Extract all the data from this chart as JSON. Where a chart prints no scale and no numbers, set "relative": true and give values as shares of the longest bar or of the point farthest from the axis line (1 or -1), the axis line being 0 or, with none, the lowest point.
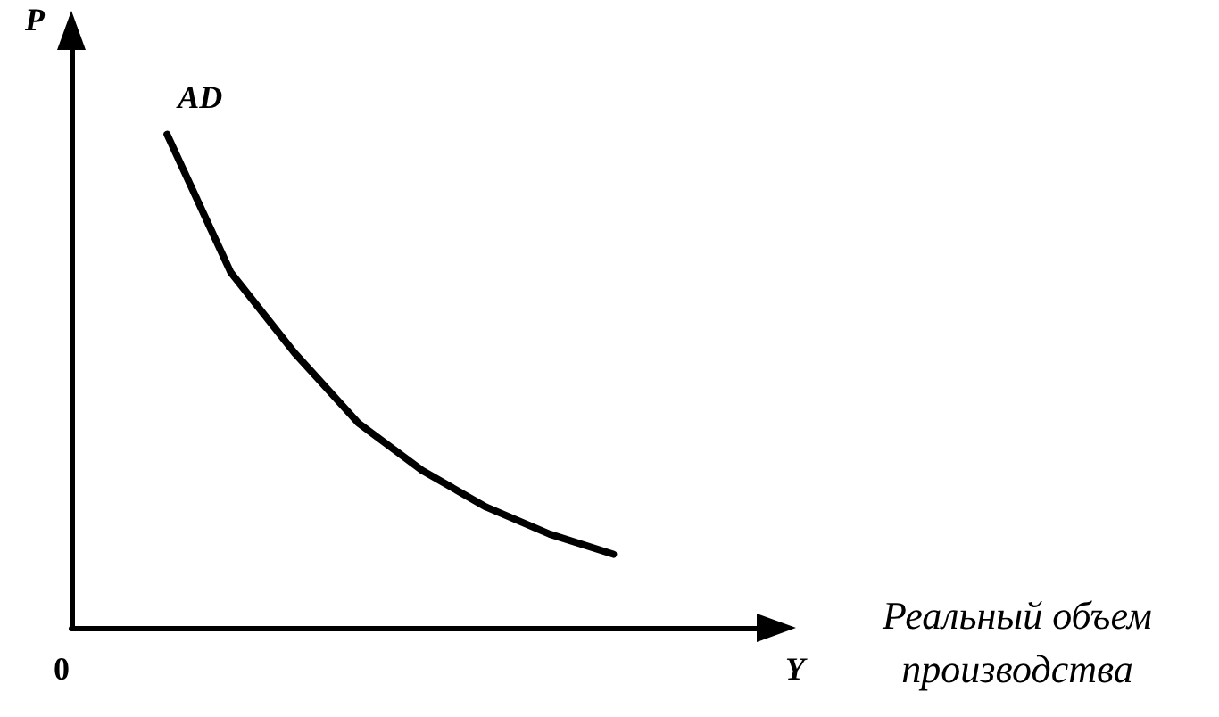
{
  "chart_data": {
    "type": "line",
    "relative": true,
    "ylabel": "P",
    "xlabel": "Y",
    "annotations": [
      "0",
      "Реальный объем производства"
    ],
    "categories": [
      null,
      null,
      null,
      null,
      null,
      null,
      null,
      null,
      null,
      null,
      null
    ],
    "marker": "none",
    "line_style": "solid",
    "grid": false,
    "legend": false,
    "series": [
      {
        "name": "AD",
        "color": "#000000",
        "values": [
          null,
          1.0,
          0.72,
          0.557,
          0.415,
          0.319,
          0.245,
          0.19,
          0.149,
          null,
          null
        ]
      }
    ]
  }
}
